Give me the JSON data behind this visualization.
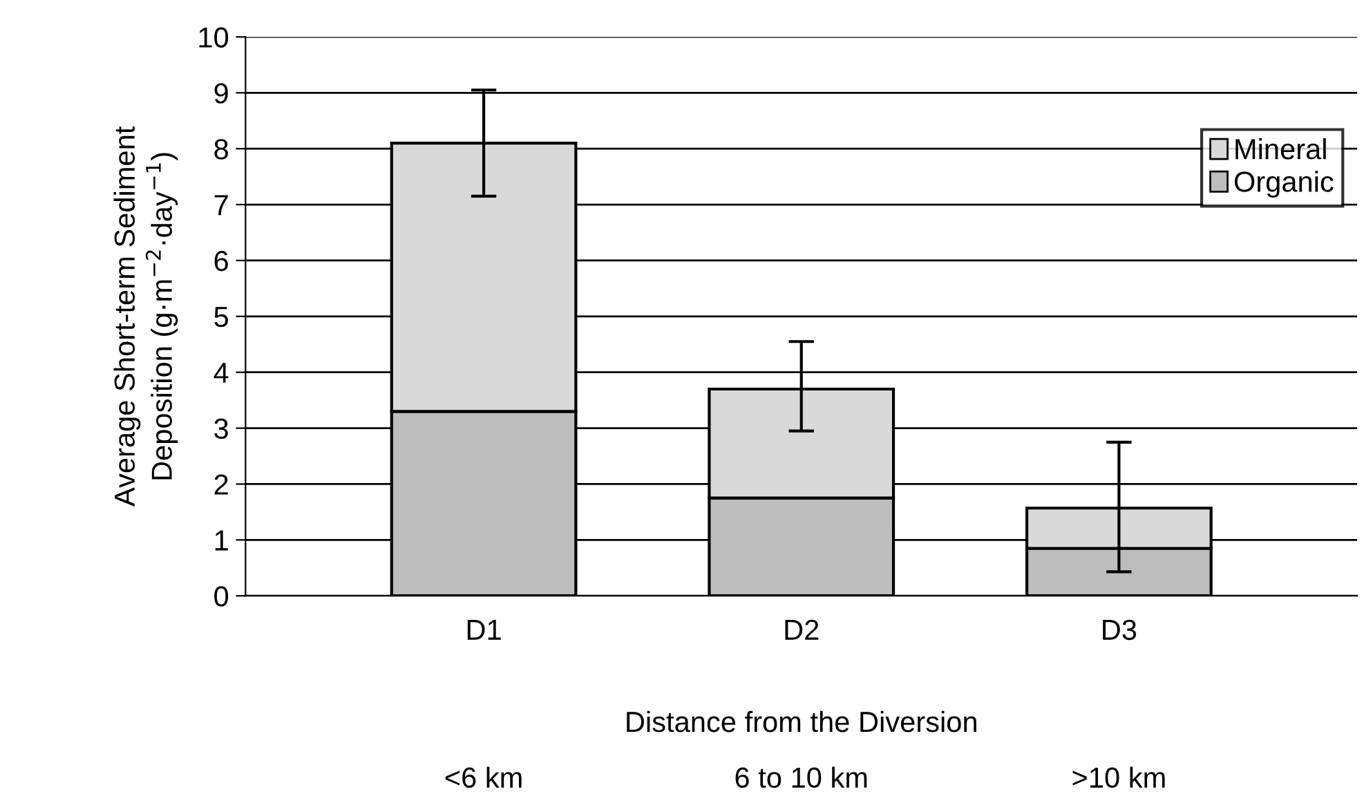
{
  "chart_data": {
    "type": "bar",
    "stacked": true,
    "categories": [
      "D1",
      "D2",
      "D3"
    ],
    "series": [
      {
        "name": "Organic",
        "color": "#bdbdbd",
        "values": [
          3.3,
          1.75,
          0.85
        ]
      },
      {
        "name": "Mineral",
        "color": "#d9d9d9",
        "values": [
          4.8,
          1.95,
          0.72
        ],
        "errors": [
          [
            7.15,
            9.05
          ],
          [
            2.95,
            4.55
          ],
          [
            0.43,
            2.75
          ]
        ]
      }
    ],
    "ylabel": "Average Short-term Sediment\nDeposition (g·m$^{−2}$·day$^{−1}$)",
    "xlabel": "Distance from the Diversion",
    "annotations": [
      "<6 km",
      "6 to 10 km",
      ">10 km"
    ],
    "ylim": [
      0,
      10
    ],
    "yticks": [
      0,
      1,
      2,
      3,
      4,
      5,
      6,
      7,
      8,
      9,
      10
    ],
    "grid": "y",
    "legend": "top right"
  }
}
